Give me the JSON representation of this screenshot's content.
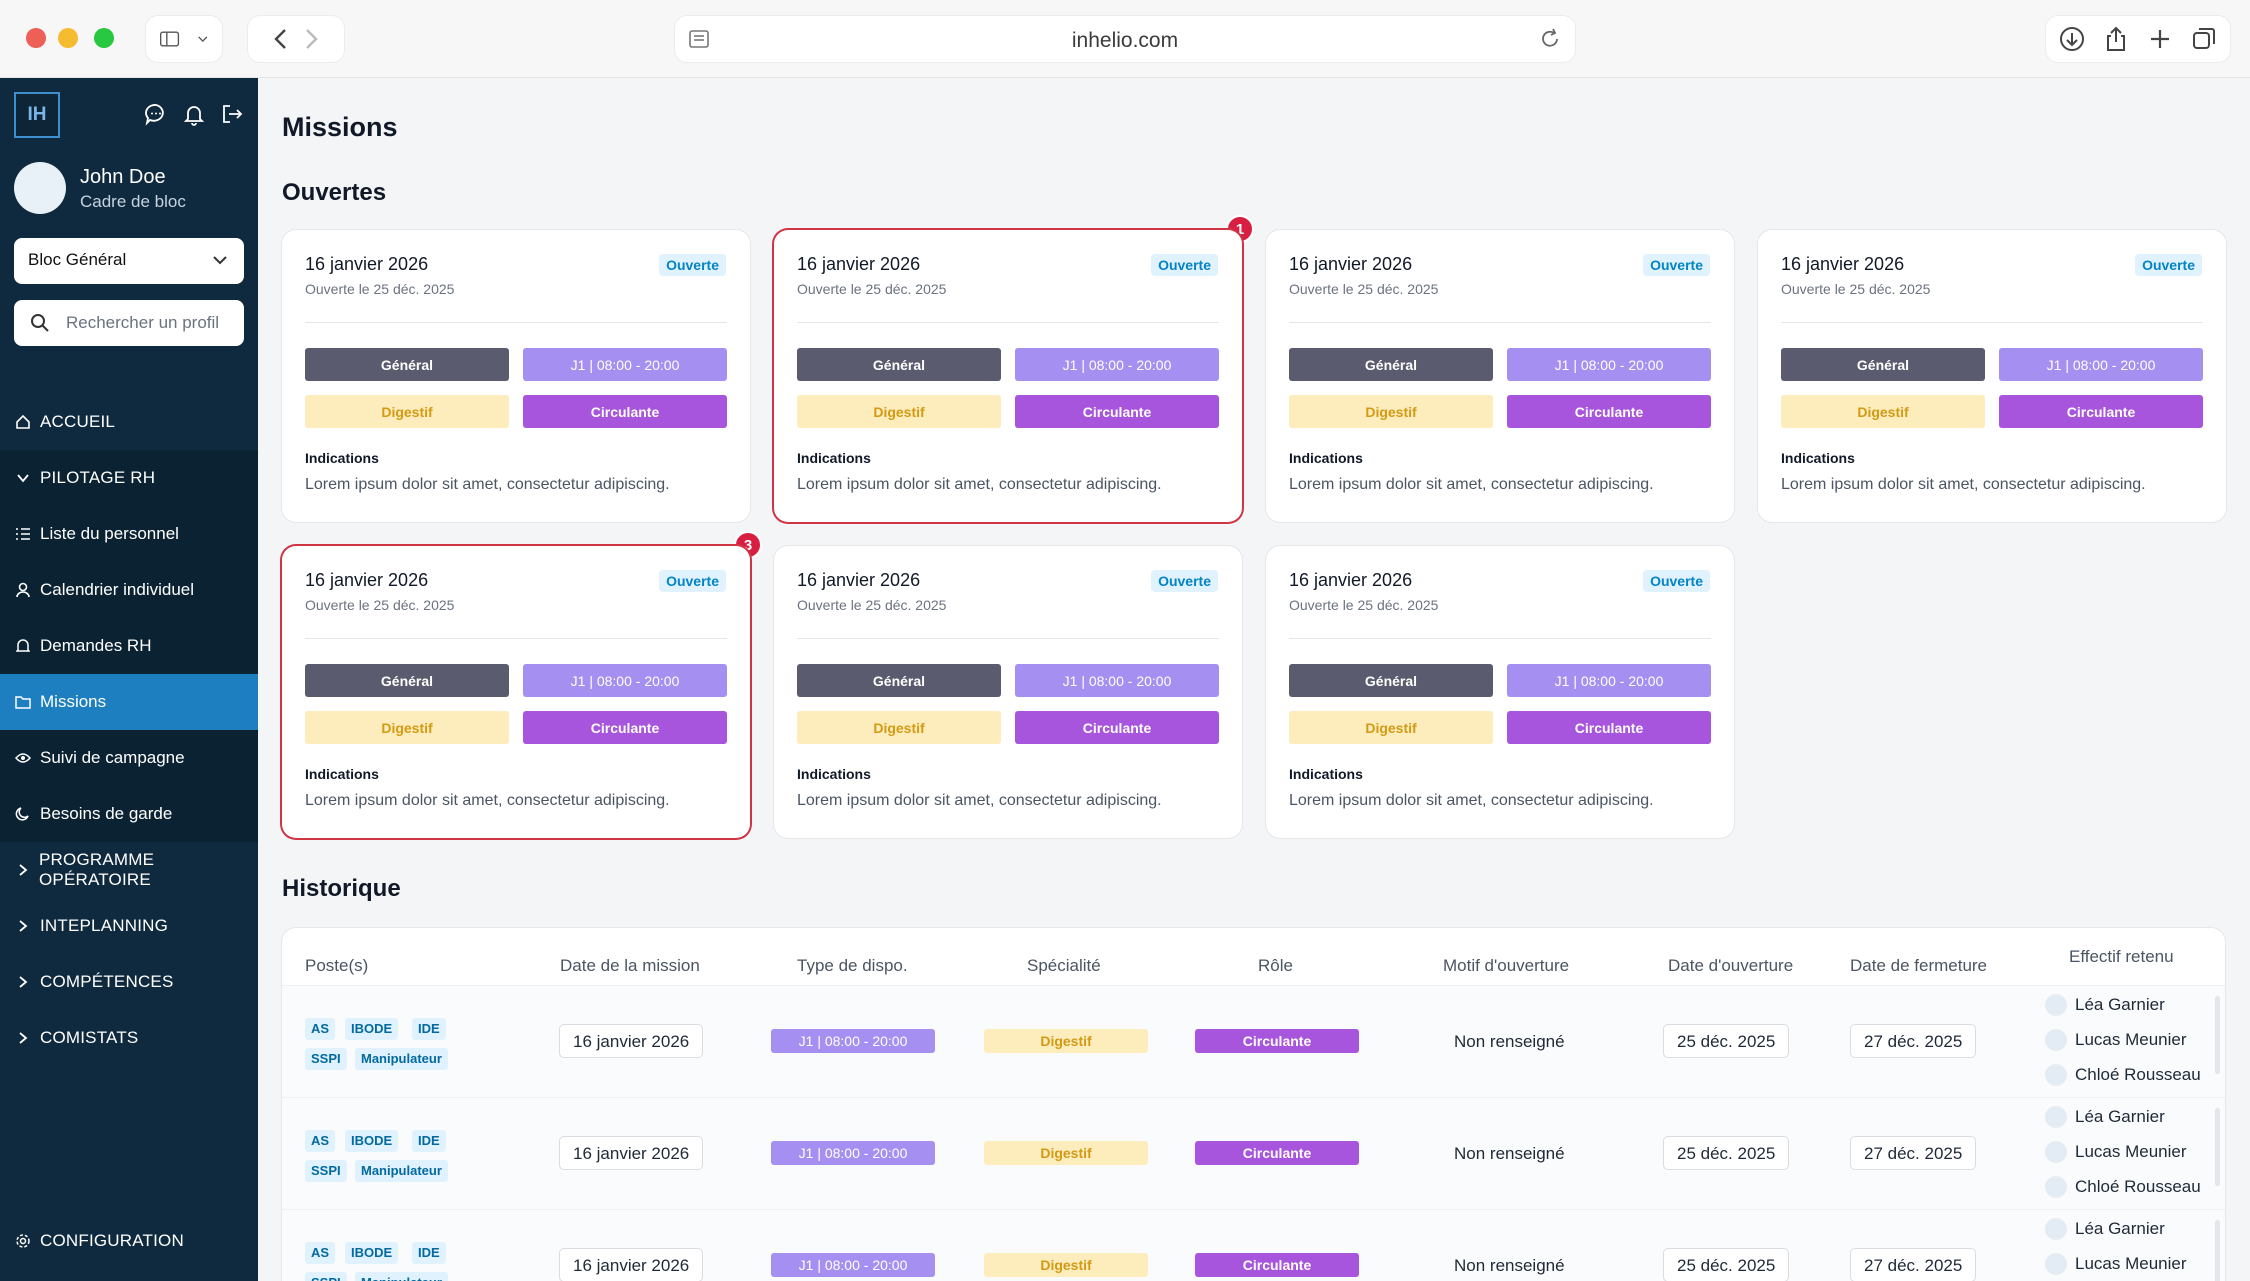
{
  "browser": {
    "url": "inhelio.com"
  },
  "sidebar": {
    "logo": "IH",
    "user": {
      "name": "John Doe",
      "role": "Cadre de bloc"
    },
    "bloc_select": "Bloc Général",
    "search_placeholder": "Rechercher un profil",
    "nav": {
      "accueil": "ACCUEIL",
      "pilotage": "PILOTAGE RH",
      "liste": "Liste du personnel",
      "calendrier": "Calendrier individuel",
      "demandes": "Demandes RH",
      "missions": "Missions",
      "suivi": "Suivi de campagne",
      "besoins": "Besoins de garde",
      "programme": "PROGRAMME OPÉRATOIRE",
      "inteplanning": "INTEPLANNING",
      "competences": "COMPÉTENCES",
      "comistats": "COMISTATS",
      "configuration": "CONFIGURATION"
    }
  },
  "page": {
    "title": "Missions",
    "open_title": "Ouvertes",
    "history_title": "Historique"
  },
  "card": {
    "date": "16 janvier 2026",
    "opened": "Ouverte le 25 déc. 2025",
    "status": "Ouverte",
    "bloc": "Général",
    "slot": "J1 | 08:00 - 20:00",
    "specialty": "Digestif",
    "role": "Circulante",
    "indications_label": "Indications",
    "indications": "Lorem ipsum dolor sit amet, consectetur adipiscing."
  },
  "notifications": [
    "1",
    "3"
  ],
  "table": {
    "headers": {
      "poste": "Poste(s)",
      "date_mission": "Date de la mission",
      "type": "Type de dispo.",
      "specialite": "Spécialité",
      "role": "Rôle",
      "motif": "Motif d'ouverture",
      "ouverture": "Date d'ouverture",
      "fermeture": "Date de fermeture",
      "effectif": "Effectif retenu"
    },
    "row": {
      "tags": [
        "AS",
        "IBODE",
        "IDE",
        "SSPI",
        "Manipulateur"
      ],
      "date": "16 janvier 2026",
      "type": "J1 | 08:00 - 20:00",
      "specialite": "Digestif",
      "role": "Circulante",
      "motif": "Non renseigné",
      "ouverture": "25 déc. 2025",
      "fermeture": "27 déc. 2025",
      "people": [
        "Léa Garnier",
        "Lucas Meunier",
        "Chloé Rousseau"
      ]
    }
  },
  "colors": {
    "accent": "#1e7fc0",
    "sidebar": "#0f2a3f",
    "highlight": "#d03545"
  }
}
